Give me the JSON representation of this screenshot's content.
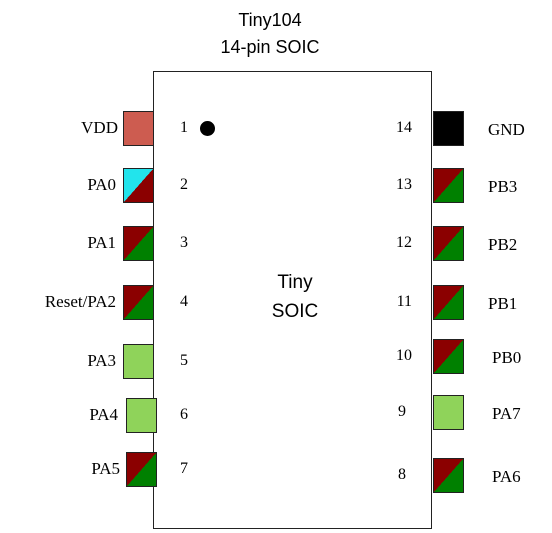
{
  "title_line1": "Tiny104",
  "title_line2": "14-pin SOIC",
  "chip_label_line1": "Tiny",
  "chip_label_line2": "SOIC",
  "colors": {
    "vdd": "#cd5c50",
    "gnd": "#000000",
    "diag_dark_red": "#8b0000",
    "diag_green": "#008000",
    "light_green": "#8fd35a",
    "cyan": "#22e4ec"
  },
  "left_pins": [
    {
      "number": "1",
      "name": "VDD",
      "style": "vdd"
    },
    {
      "number": "2",
      "name": "PA0",
      "style": "cyan-red"
    },
    {
      "number": "3",
      "name": "PA1",
      "style": "red-green"
    },
    {
      "number": "4",
      "name": "Reset/PA2",
      "style": "red-green"
    },
    {
      "number": "5",
      "name": "PA3",
      "style": "light-green"
    },
    {
      "number": "6",
      "name": "PA4",
      "style": "light-green"
    },
    {
      "number": "7",
      "name": "PA5",
      "style": "red-green"
    }
  ],
  "right_pins": [
    {
      "number": "14",
      "name": "GND",
      "style": "gnd"
    },
    {
      "number": "13",
      "name": "PB3",
      "style": "red-green"
    },
    {
      "number": "12",
      "name": "PB2",
      "style": "red-green"
    },
    {
      "number": "11",
      "name": "PB1",
      "style": "red-green"
    },
    {
      "number": "10",
      "name": "PB0",
      "style": "red-green"
    },
    {
      "number": "9",
      "name": "PA7",
      "style": "light-green"
    },
    {
      "number": "8",
      "name": "PA6",
      "style": "red-green"
    }
  ]
}
